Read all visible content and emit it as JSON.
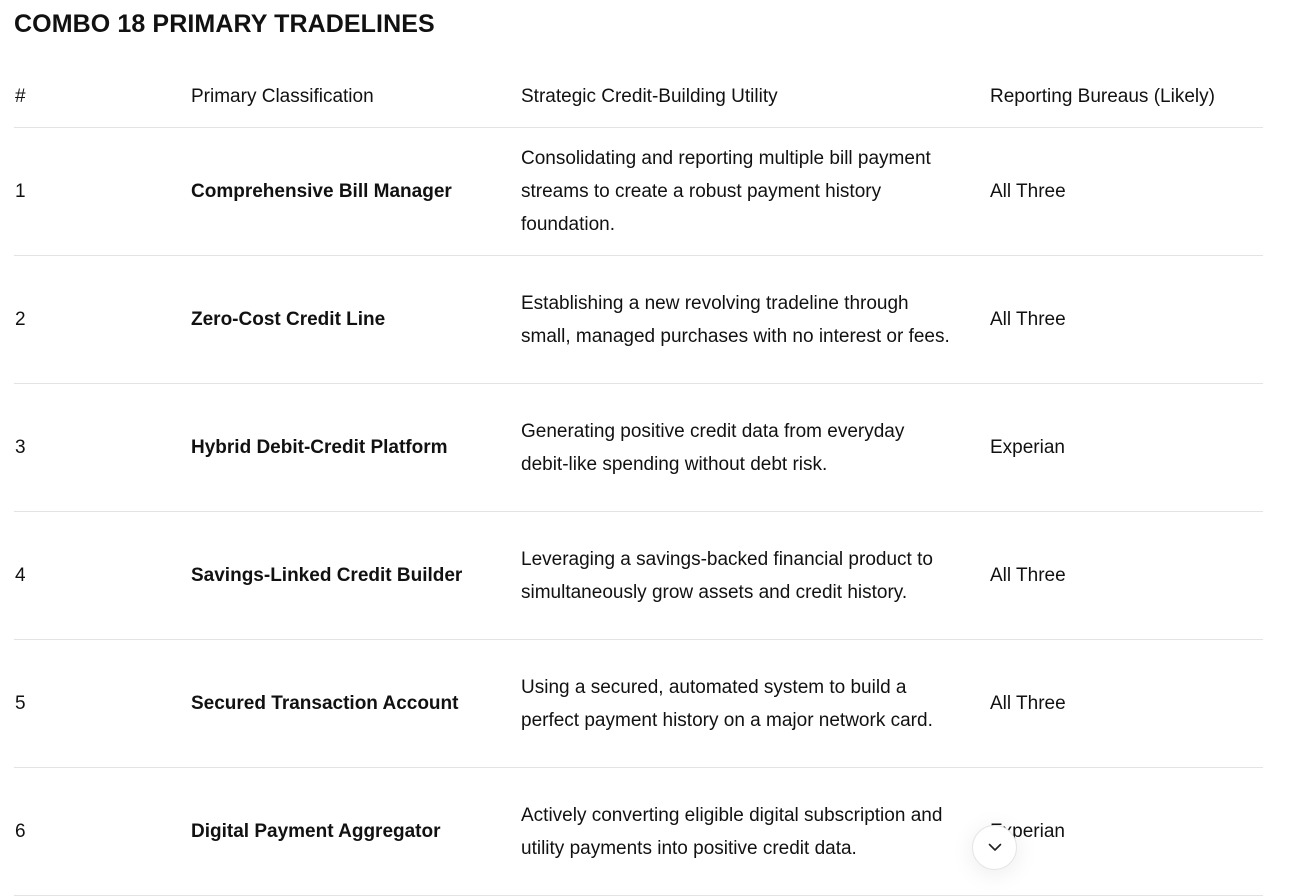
{
  "title": "COMBO 18 PRIMARY TRADELINES",
  "table": {
    "headers": [
      "#",
      "Primary Classification",
      "Strategic Credit-Building Utility",
      "Reporting Bureaus (Likely)"
    ],
    "rows": [
      {
        "num": "1",
        "classification": "Comprehensive Bill Manager",
        "utility": "Consolidating and reporting multiple bill payment streams to create a robust payment history foundation.",
        "bureaus": "All Three"
      },
      {
        "num": "2",
        "classification": "Zero-Cost Credit Line",
        "utility": "Establishing a new revolving tradeline through small, managed purchases with no interest or fees.",
        "bureaus": "All Three"
      },
      {
        "num": "3",
        "classification": "Hybrid Debit-Credit Platform",
        "utility": "Generating positive credit data from everyday debit-like spending without debt risk.",
        "bureaus": "Experian"
      },
      {
        "num": "4",
        "classification": "Savings-Linked Credit Builder",
        "utility": "Leveraging a savings-backed financial product to simultaneously grow assets and credit history.",
        "bureaus": "All Three"
      },
      {
        "num": "5",
        "classification": "Secured Transaction Account",
        "utility": "Using a secured, automated system to build a perfect payment history on a major network card.",
        "bureaus": "All Three"
      },
      {
        "num": "6",
        "classification": "Digital Payment Aggregator",
        "utility": "Actively converting eligible digital subscription and utility payments into positive credit data.",
        "bureaus": "Experian"
      }
    ]
  },
  "scroll_button": {
    "icon": "chevron-down-icon"
  }
}
